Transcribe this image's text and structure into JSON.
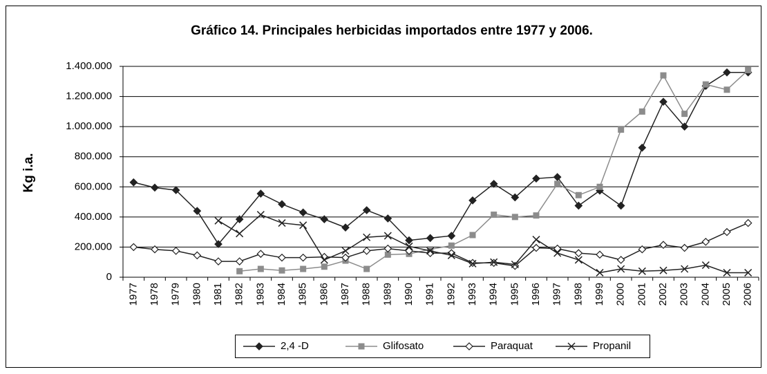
{
  "chart_data": {
    "type": "line",
    "title": "Gráfico 14. Principales herbicidas importados entre 1977 y 2006.",
    "y_label": "Kg i.a.",
    "categories": [
      "1977",
      "1978",
      "1979",
      "1980",
      "1981",
      "1982",
      "1983",
      "1984",
      "1985",
      "1986",
      "1987",
      "1988",
      "1989",
      "1990",
      "1991",
      "1992",
      "1993",
      "1994",
      "1995",
      "1996",
      "1997",
      "1998",
      "1999",
      "2000",
      "2001",
      "2002",
      "2003",
      "2004",
      "2005",
      "2006"
    ],
    "ylim": [
      0,
      1400000
    ],
    "yticks": [
      0,
      {
        "value": 200000,
        "label": "200.000"
      },
      {
        "value": 400000,
        "label": "400.000"
      },
      {
        "value": 600000,
        "label": "600.000"
      },
      {
        "value": 800000,
        "label": "800.000"
      },
      {
        "value": 1000000,
        "label": "1.000.000"
      },
      {
        "value": 1200000,
        "label": "1.200.000"
      },
      {
        "value": 1400000,
        "label": "1.400.000"
      }
    ],
    "grid": true,
    "legend": "bottom",
    "series": [
      {
        "name": "2,4 -D",
        "color": "#222222",
        "marker": "diamond",
        "values": [
          630000,
          595000,
          578000,
          440000,
          220000,
          385000,
          555000,
          485000,
          430000,
          385000,
          330000,
          445000,
          390000,
          245000,
          260000,
          275000,
          510000,
          620000,
          530000,
          655000,
          665000,
          475000,
          575000,
          475000,
          860000,
          1165000,
          1000000,
          1270000,
          1360000,
          1360000
        ]
      },
      {
        "name": "Glifosato",
        "color": "#8c8c8c",
        "marker": "square",
        "values": [
          null,
          null,
          null,
          null,
          null,
          40000,
          55000,
          45000,
          55000,
          70000,
          110000,
          55000,
          150000,
          155000,
          185000,
          210000,
          280000,
          415000,
          400000,
          410000,
          620000,
          545000,
          600000,
          980000,
          1100000,
          1340000,
          1085000,
          1280000,
          1245000,
          1375000
        ]
      },
      {
        "name": "Paraquat",
        "color": "#222222",
        "marker": "diamond-open",
        "values": [
          200000,
          185000,
          175000,
          145000,
          105000,
          105000,
          155000,
          130000,
          130000,
          135000,
          130000,
          175000,
          190000,
          175000,
          160000,
          160000,
          95000,
          95000,
          75000,
          195000,
          190000,
          160000,
          150000,
          115000,
          185000,
          215000,
          195000,
          235000,
          300000,
          360000
        ]
      },
      {
        "name": "Propanil",
        "color": "#222222",
        "marker": "x",
        "values": [
          null,
          null,
          null,
          null,
          375000,
          290000,
          415000,
          360000,
          345000,
          115000,
          175000,
          265000,
          275000,
          205000,
          175000,
          145000,
          90000,
          100000,
          85000,
          250000,
          160000,
          115000,
          30000,
          55000,
          40000,
          45000,
          55000,
          80000,
          30000,
          30000
        ]
      }
    ]
  }
}
